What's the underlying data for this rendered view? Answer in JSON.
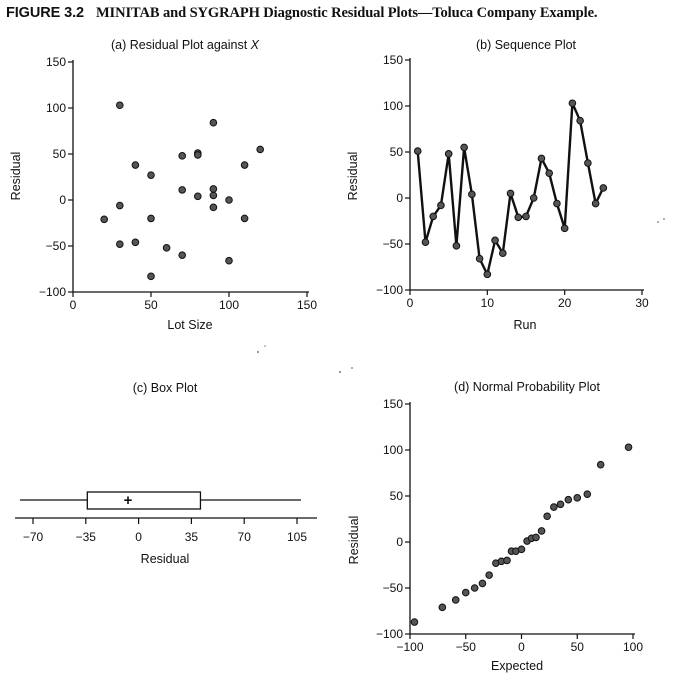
{
  "figure": {
    "number": "FIGURE 3.2",
    "title": "MINITAB and SYGRAPH Diagnostic Residual Plots—Toluca Company Example."
  },
  "chart_data": [
    {
      "id": "a",
      "type": "scatter",
      "title_prefix": "(a) Residual Plot against ",
      "title_var": "X",
      "xlabel": "Lot Size",
      "ylabel": "Residual",
      "xlim": [
        0,
        150
      ],
      "ylim": [
        -100,
        150
      ],
      "xticks": [
        0,
        50,
        100,
        150
      ],
      "yticks": [
        -100,
        -50,
        0,
        50,
        100,
        150
      ],
      "xtick_labels": [
        "0",
        "50",
        "100",
        "150"
      ],
      "ytick_labels": [
        "−100",
        "−50",
        "0",
        "50",
        "100",
        "150"
      ],
      "x": [
        80,
        30,
        50,
        90,
        70,
        60,
        120,
        80,
        100,
        50,
        40,
        70,
        90,
        20,
        110,
        100,
        30,
        50,
        90,
        110,
        30,
        90,
        40,
        80,
        70
      ],
      "y": [
        51,
        -48,
        -20,
        -8,
        48,
        -52,
        55,
        4,
        -66,
        -83,
        -46,
        -60,
        5,
        -21,
        -20,
        0,
        103,
        27,
        84,
        38,
        -6,
        12,
        38,
        49,
        11
      ]
    },
    {
      "id": "b",
      "type": "line",
      "title": "(b) Sequence Plot",
      "xlabel": "Run",
      "ylabel": "Residual",
      "xlim": [
        0,
        30
      ],
      "ylim": [
        -100,
        150
      ],
      "xticks": [
        0,
        10,
        20,
        30
      ],
      "yticks": [
        -100,
        -50,
        0,
        50,
        100,
        150
      ],
      "xtick_labels": [
        "0",
        "10",
        "20",
        "30"
      ],
      "ytick_labels": [
        "−100",
        "−50",
        "0",
        "50",
        "100",
        "150"
      ],
      "x": [
        1,
        2,
        3,
        4,
        5,
        6,
        7,
        8,
        9,
        10,
        11,
        12,
        13,
        14,
        15,
        16,
        17,
        18,
        19,
        20,
        21,
        22,
        23,
        24,
        25
      ],
      "y": [
        51,
        -48,
        -20,
        -8,
        48,
        -52,
        55,
        4,
        -66,
        -83,
        -46,
        -60,
        5,
        -21,
        -20,
        0,
        43,
        27,
        -6,
        -33,
        103,
        84,
        38,
        -6,
        11
      ]
    },
    {
      "id": "c",
      "type": "box",
      "title": "(c) Box Plot",
      "xlabel": "Residual",
      "xlim": [
        -80,
        115
      ],
      "xticks": [
        -70,
        -35,
        0,
        35,
        70,
        105
      ],
      "xtick_labels": [
        "−70",
        "−35",
        "0",
        "35",
        "70",
        "105"
      ],
      "whisker_low": -83,
      "q1": -34,
      "mean": -7,
      "q3": 41,
      "whisker_high": 103,
      "mean_marker": "+"
    },
    {
      "id": "d",
      "type": "scatter",
      "title": "(d) Normal Probability Plot",
      "xlabel": "Expected",
      "ylabel": "Residual",
      "xlim": [
        -100,
        100
      ],
      "ylim": [
        -100,
        150
      ],
      "xticks": [
        -100,
        -50,
        0,
        50,
        100
      ],
      "yticks": [
        -100,
        -50,
        0,
        50,
        100,
        150
      ],
      "xtick_labels": [
        "−100",
        "−50",
        "0",
        "50",
        "100"
      ],
      "ytick_labels": [
        "−100",
        "−50",
        "0",
        "50",
        "100",
        "150"
      ],
      "x": [
        -96,
        -71,
        -59,
        -50,
        -42,
        -35,
        -29,
        -23,
        -18,
        -13,
        -9,
        -5,
        0,
        5,
        9,
        13,
        18,
        23,
        29,
        35,
        42,
        50,
        59,
        71,
        96
      ],
      "y": [
        -87,
        -71,
        -63,
        -55,
        -50,
        -45,
        -36,
        -23,
        -21,
        -20,
        -10,
        -10,
        -8,
        1,
        4,
        5,
        12,
        28,
        38,
        41,
        46,
        48,
        52,
        84,
        103
      ]
    }
  ]
}
